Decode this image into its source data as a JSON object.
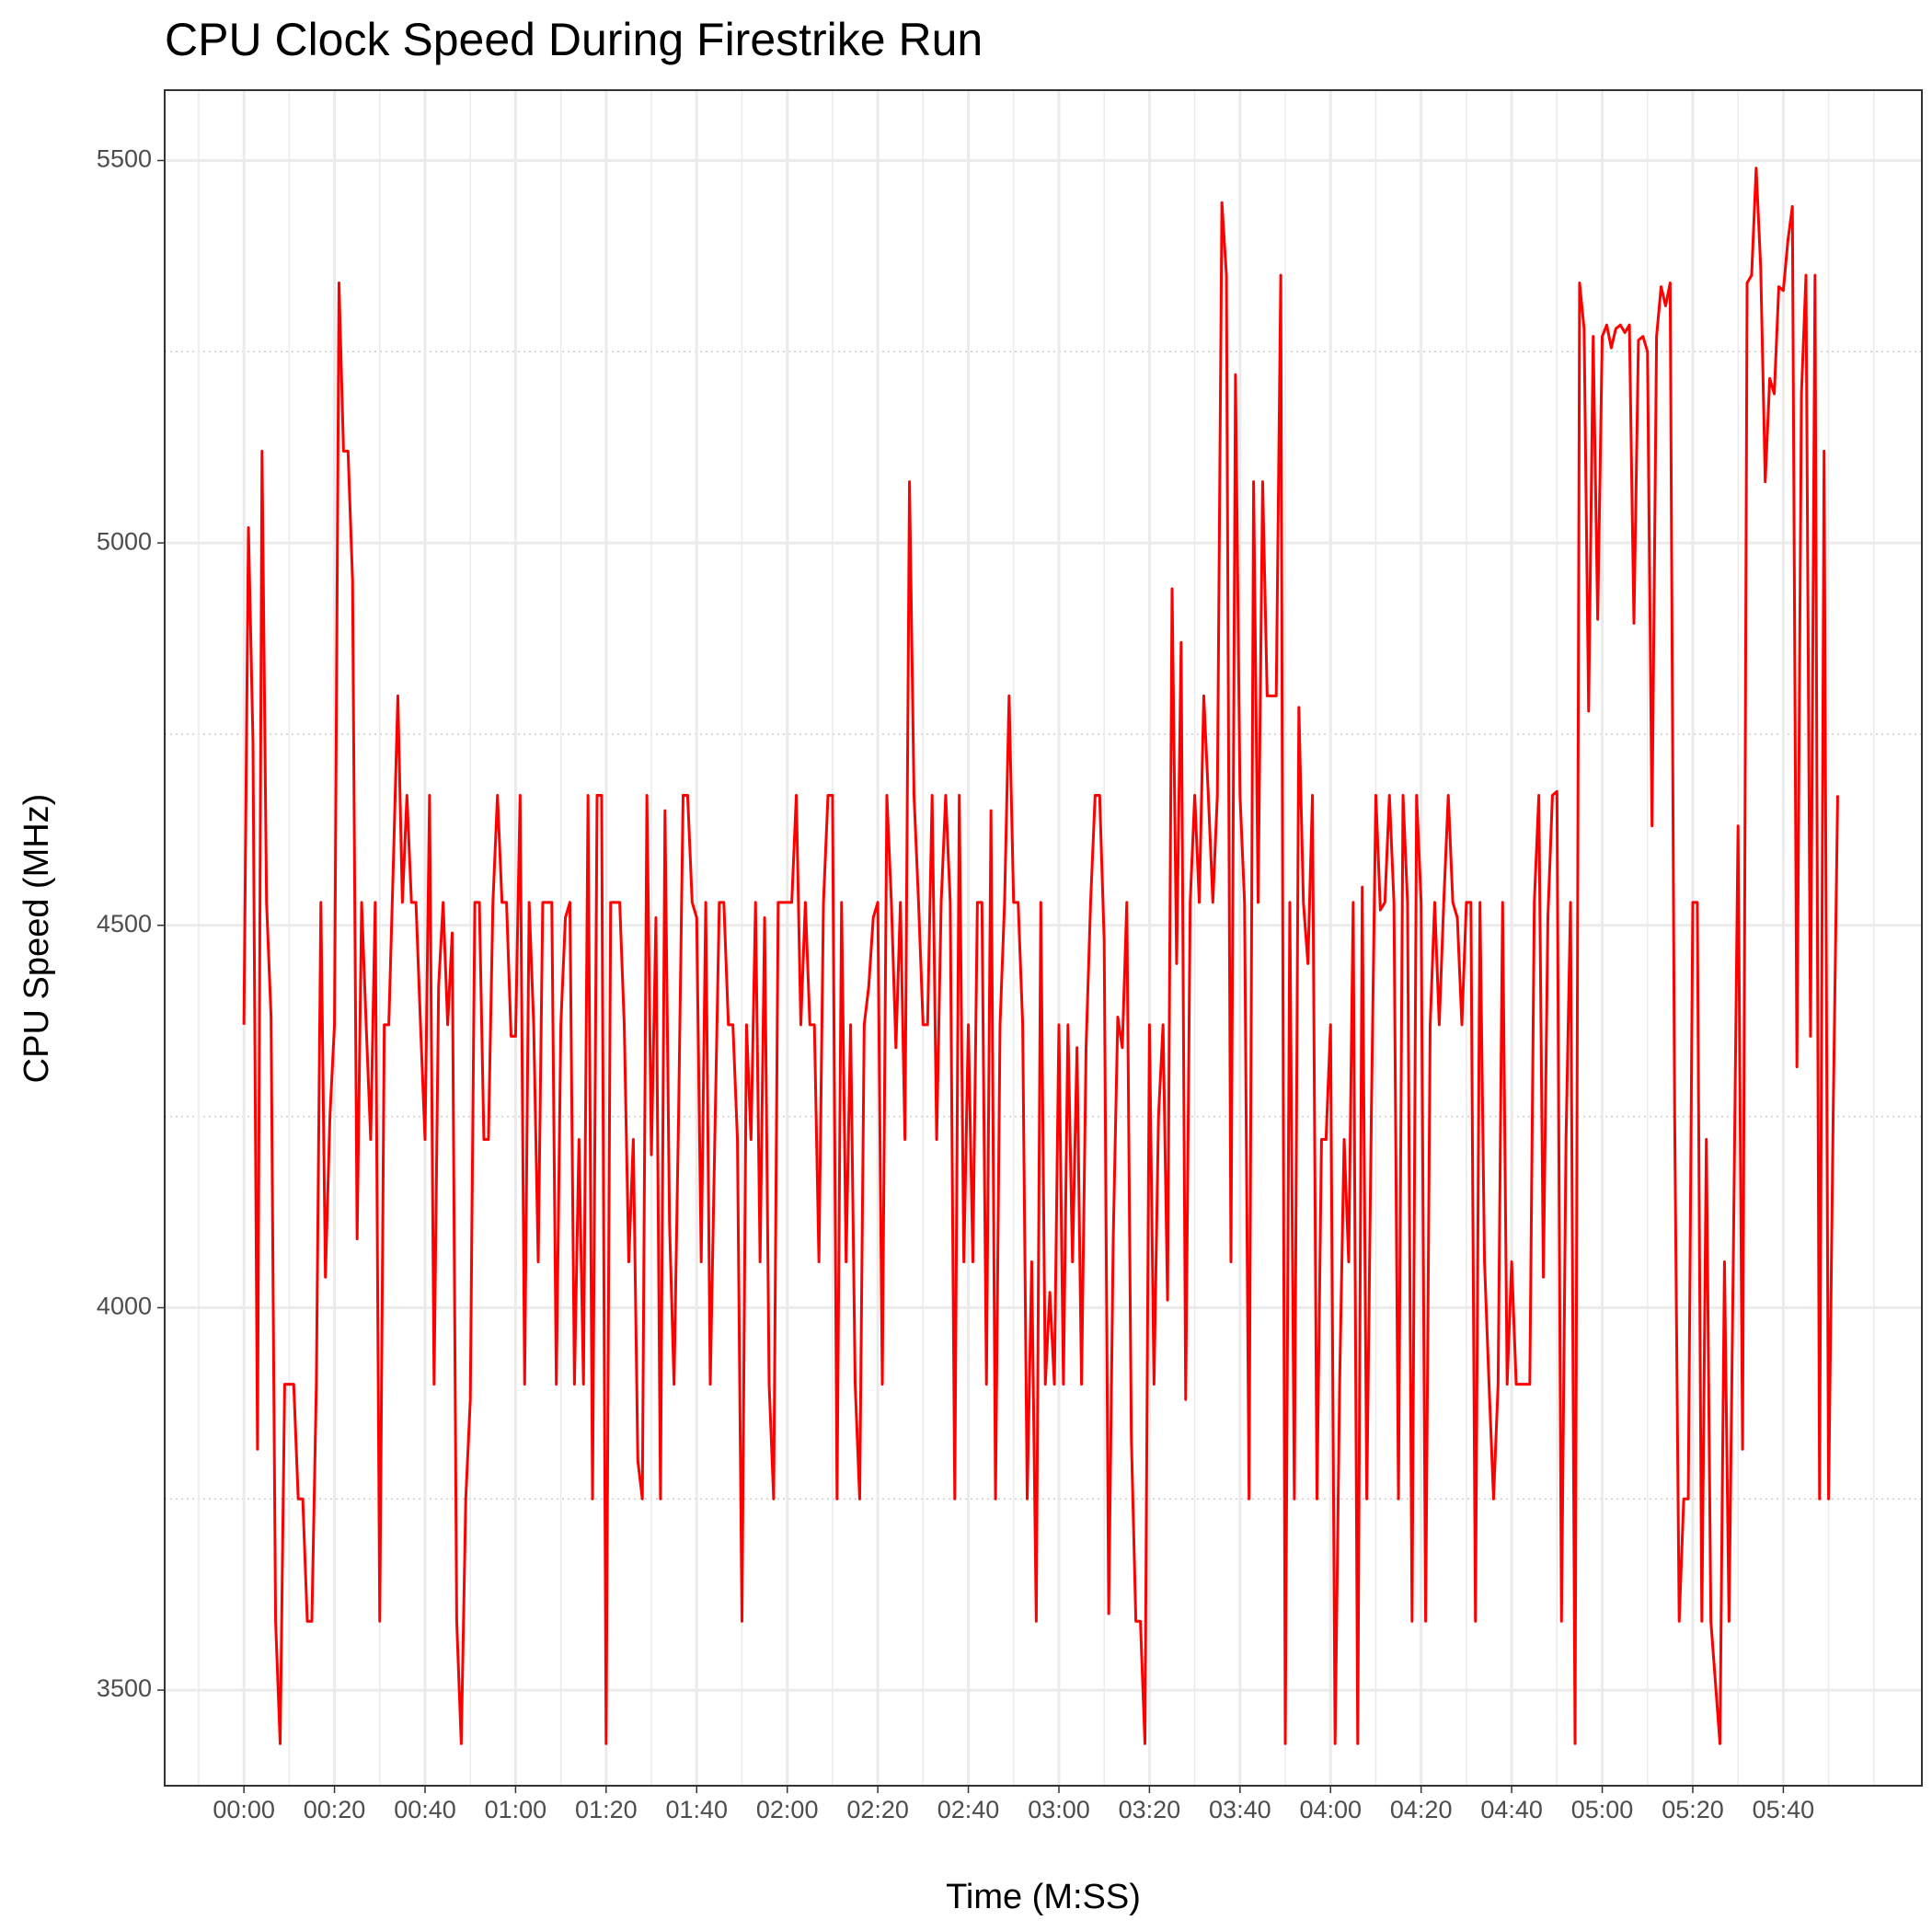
{
  "chart_data": {
    "type": "line",
    "title": "CPU Clock Speed During Firestrike Run",
    "x_label": "Time (M:SS)",
    "y_label": "CPU Speed (MHz)",
    "xlim": [
      -17.5,
      370.6
    ],
    "ylim": [
      3375,
      5592
    ],
    "xticks": [
      {
        "value": 0,
        "label": "00:00"
      },
      {
        "value": 20,
        "label": "00:20"
      },
      {
        "value": 40,
        "label": "00:40"
      },
      {
        "value": 60,
        "label": "01:00"
      },
      {
        "value": 80,
        "label": "01:20"
      },
      {
        "value": 100,
        "label": "01:40"
      },
      {
        "value": 120,
        "label": "02:00"
      },
      {
        "value": 140,
        "label": "02:20"
      },
      {
        "value": 160,
        "label": "02:40"
      },
      {
        "value": 180,
        "label": "03:00"
      },
      {
        "value": 200,
        "label": "03:20"
      },
      {
        "value": 220,
        "label": "03:40"
      },
      {
        "value": 240,
        "label": "04:00"
      },
      {
        "value": 260,
        "label": "04:20"
      },
      {
        "value": 280,
        "label": "04:40"
      },
      {
        "value": 300,
        "label": "05:00"
      },
      {
        "value": 320,
        "label": "05:20"
      },
      {
        "value": 340,
        "label": "05:40"
      }
    ],
    "yticks": [
      3500,
      4000,
      4500,
      5000,
      5500
    ],
    "minor_xticks": [
      -10,
      10,
      30,
      50,
      70,
      90,
      110,
      130,
      150,
      170,
      190,
      210,
      230,
      250,
      270,
      290,
      310,
      330,
      350,
      360
    ],
    "minor_yticks": [
      3750,
      4250,
      4750,
      5250
    ],
    "grid": true,
    "series": [
      {
        "name": "CPU Speed",
        "color": "#ff0000",
        "x": [
          0,
          1,
          2,
          3,
          4,
          5,
          6,
          7,
          8,
          9,
          10,
          11,
          12,
          13,
          14,
          15,
          16,
          17,
          18,
          19,
          20,
          21,
          22,
          23,
          24,
          25,
          26,
          27,
          28,
          29,
          30,
          31,
          32,
          33,
          34,
          35,
          36,
          37,
          38,
          39,
          40,
          41,
          42,
          43,
          44,
          45,
          46,
          47,
          48,
          49,
          50,
          51,
          52,
          53,
          54,
          55,
          56,
          57,
          58,
          59,
          60,
          61,
          62,
          63,
          64,
          65,
          66,
          67,
          68,
          69,
          70,
          71,
          72,
          73,
          74,
          75,
          76,
          77,
          78,
          79,
          80,
          81,
          82,
          83,
          84,
          85,
          86,
          87,
          88,
          89,
          90,
          91,
          92,
          93,
          94,
          95,
          96,
          97,
          98,
          99,
          100,
          101,
          102,
          103,
          104,
          105,
          106,
          107,
          108,
          109,
          110,
          111,
          112,
          113,
          114,
          115,
          116,
          117,
          118,
          119,
          120,
          121,
          122,
          123,
          124,
          125,
          126,
          127,
          128,
          129,
          130,
          131,
          132,
          133,
          134,
          135,
          136,
          137,
          138,
          139,
          140,
          141,
          142,
          143,
          144,
          145,
          146,
          147,
          148,
          149,
          150,
          151,
          152,
          153,
          154,
          155,
          156,
          157,
          158,
          159,
          160,
          161,
          162,
          163,
          164,
          165,
          166,
          167,
          168,
          169,
          170,
          171,
          172,
          173,
          174,
          175,
          176,
          177,
          178,
          179,
          180,
          181,
          182,
          183,
          184,
          185,
          186,
          187,
          188,
          189,
          190,
          191,
          192,
          193,
          194,
          195,
          196,
          197,
          198,
          199,
          200,
          201,
          202,
          203,
          204,
          205,
          206,
          207,
          208,
          209,
          210,
          211,
          212,
          213,
          214,
          215,
          216,
          217,
          218,
          219,
          220,
          221,
          222,
          223,
          224,
          225,
          226,
          227,
          228,
          229,
          230,
          231,
          232,
          233,
          234,
          235,
          236,
          237,
          238,
          239,
          240,
          241,
          242,
          243,
          244,
          245,
          246,
          247,
          248,
          249,
          250,
          251,
          252,
          253,
          254,
          255,
          256,
          257,
          258,
          259,
          260,
          261,
          262,
          263,
          264,
          265,
          266,
          267,
          268,
          269,
          270,
          271,
          272,
          273,
          274,
          275,
          276,
          277,
          278,
          279,
          280,
          281,
          282,
          283,
          284,
          285,
          286,
          287,
          288,
          289,
          290,
          291,
          292,
          293,
          294,
          295,
          296,
          297,
          298,
          299,
          300,
          301,
          302,
          303,
          304,
          305,
          306,
          307,
          308,
          309,
          310,
          311,
          312,
          313,
          314,
          315,
          316,
          317,
          318,
          319,
          320,
          321,
          322,
          323,
          324,
          325,
          326,
          327,
          328,
          329,
          330,
          331,
          332,
          333,
          334,
          335,
          336,
          337,
          338,
          339,
          340,
          341,
          342,
          343,
          344,
          345,
          346,
          347,
          348,
          349,
          350,
          351,
          352
        ],
        "values": [
          4370,
          5020,
          4740,
          3815,
          5120,
          4530,
          4380,
          3590,
          3430,
          3900,
          3900,
          3900,
          3750,
          3750,
          3590,
          3590,
          3900,
          4530,
          4040,
          4250,
          4370,
          5340,
          5120,
          5120,
          4950,
          4090,
          4530,
          4370,
          4220,
          4530,
          3590,
          4370,
          4370,
          4580,
          4800,
          4530,
          4670,
          4530,
          4530,
          4370,
          4220,
          4670,
          3900,
          4420,
          4530,
          4370,
          4490,
          3590,
          3430,
          3750,
          3880,
          4530,
          4530,
          4220,
          4220,
          4530,
          4670,
          4530,
          4530,
          4355,
          4355,
          4670,
          3900,
          4530,
          4370,
          4060,
          4530,
          4530,
          4530,
          3900,
          4370,
          4510,
          4530,
          3900,
          4220,
          3900,
          4670,
          3750,
          4670,
          4670,
          3430,
          4530,
          4530,
          4530,
          4370,
          4060,
          4220,
          3800,
          3750,
          4670,
          4200,
          4510,
          3750,
          4650,
          4110,
          3900,
          4250,
          4670,
          4670,
          4530,
          4510,
          4060,
          4530,
          3900,
          4220,
          4530,
          4530,
          4370,
          4370,
          4220,
          3590,
          4370,
          4220,
          4530,
          4060,
          4510,
          3900,
          3750,
          4530,
          4530,
          4530,
          4530,
          4670,
          4370,
          4530,
          4370,
          4370,
          4060,
          4530,
          4670,
          4670,
          3750,
          4530,
          4060,
          4370,
          3900,
          3750,
          4370,
          4420,
          4510,
          4530,
          3900,
          4670,
          4530,
          4340,
          4530,
          4220,
          5080,
          4670,
          4530,
          4370,
          4370,
          4670,
          4220,
          4530,
          4670,
          4530,
          3750,
          4670,
          4060,
          4370,
          4060,
          4530,
          4530,
          3900,
          4650,
          3750,
          4370,
          4530,
          4800,
          4530,
          4530,
          4370,
          3750,
          4060,
          3590,
          4530,
          3900,
          4020,
          3900,
          4370,
          3900,
          4370,
          4060,
          4340,
          3900,
          4340,
          4530,
          4670,
          4670,
          4480,
          3600,
          4090,
          4380,
          4340,
          4530,
          3830,
          3590,
          3590,
          3430,
          4370,
          3900,
          4250,
          4370,
          4010,
          4940,
          4450,
          4870,
          3880,
          4530,
          4670,
          4530,
          4800,
          4670,
          4530,
          4670,
          5445,
          5350,
          4060,
          5220,
          4670,
          4530,
          3750,
          5080,
          4530,
          5080,
          4800,
          4800,
          4800,
          5350,
          3430,
          4530,
          3750,
          4785,
          4530,
          4450,
          4670,
          3750,
          4220,
          4220,
          4370,
          3430,
          3900,
          4220,
          4060,
          4530,
          3430,
          4550,
          3750,
          4250,
          4670,
          4520,
          4530,
          4670,
          4530,
          3750,
          4670,
          4530,
          3590,
          4670,
          4530,
          3590,
          4370,
          4530,
          4370,
          4530,
          4670,
          4530,
          4510,
          4370,
          4530,
          4530,
          3590,
          4530,
          4060,
          3900,
          3750,
          3900,
          4530,
          3900,
          4060,
          3900,
          3900,
          3900,
          3900,
          4530,
          4670,
          4040,
          4510,
          4670,
          4675,
          3590,
          4220,
          4530,
          3430,
          5340,
          5280,
          4780,
          5270,
          4900,
          5270,
          5285,
          5255,
          5280,
          5285,
          5275,
          5285,
          4895,
          5265,
          5270,
          5250,
          4630,
          5270,
          5335,
          5310,
          5340,
          4250,
          3590,
          3750,
          3750,
          4530,
          4530,
          3590,
          4220,
          3590,
          3510,
          3430,
          4060,
          3590,
          4090,
          4630,
          3815,
          5340,
          5350,
          5490,
          5360,
          5080,
          5215,
          5195,
          5335,
          5330,
          5395,
          5440,
          4315,
          5195,
          5350,
          4355,
          5350,
          3750,
          5120,
          3750,
          4250,
          4670
        ]
      }
    ]
  }
}
